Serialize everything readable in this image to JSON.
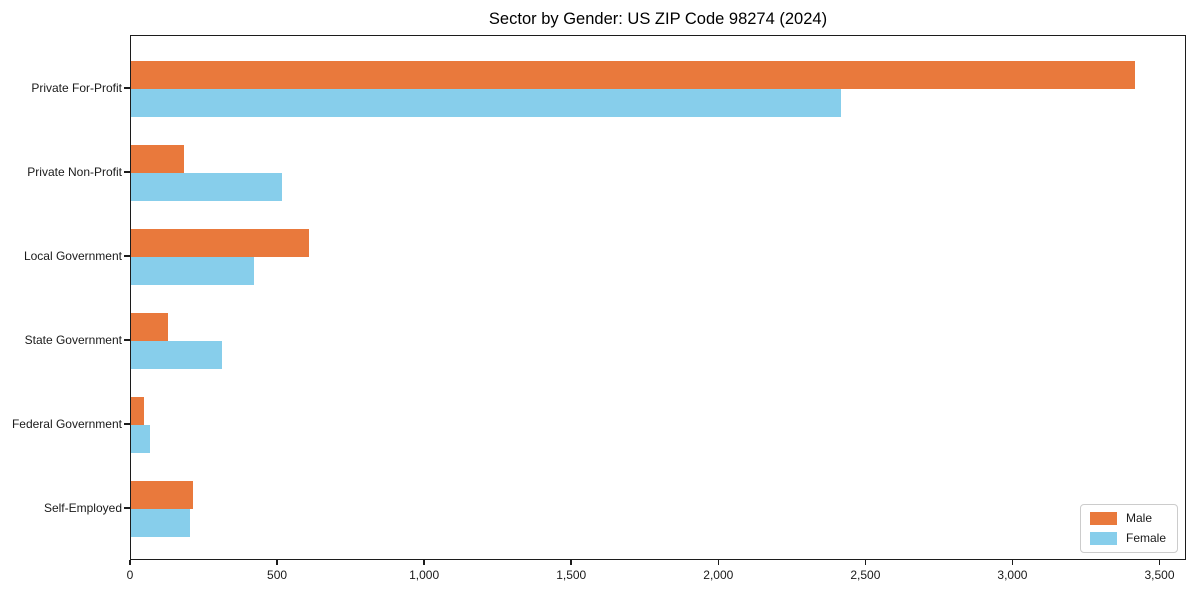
{
  "chart_data": {
    "type": "bar",
    "orientation": "horizontal",
    "title": "Sector by Gender: US ZIP Code 98274 (2024)",
    "categories": [
      "Private For-Profit",
      "Private Non-Profit",
      "Local Government",
      "State Government",
      "Federal Government",
      "Self-Employed"
    ],
    "series": [
      {
        "name": "Male",
        "color": "#e9793c",
        "values": [
          3420,
          180,
          605,
          125,
          45,
          210
        ]
      },
      {
        "name": "Female",
        "color": "#87ceeb",
        "values": [
          2420,
          515,
          420,
          310,
          65,
          200
        ]
      }
    ],
    "xlabel": "",
    "ylabel": "",
    "xlim": [
      0,
      3590
    ],
    "xticks": [
      0,
      500,
      1000,
      1500,
      2000,
      2500,
      3000,
      3500
    ],
    "xtick_labels": [
      "0",
      "500",
      "1,000",
      "1,500",
      "2,000",
      "2,500",
      "3,000",
      "3,500"
    ],
    "grid": false,
    "legend": {
      "position": "lower right"
    }
  }
}
